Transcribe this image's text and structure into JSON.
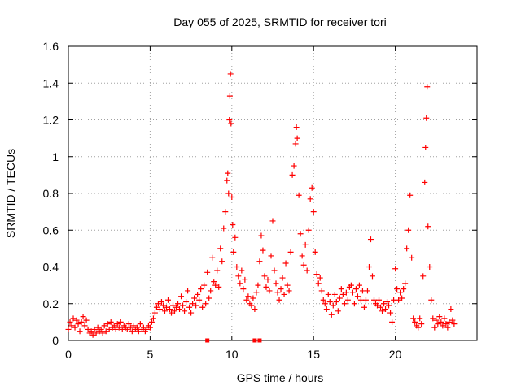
{
  "chart_data": {
    "type": "scatter",
    "title": "Day 055 of 2025, SRMTID for receiver tori",
    "xlabel": "GPS time / hours",
    "ylabel": "SRMTID / TECUs",
    "xlim": [
      0,
      25
    ],
    "ylim": [
      0,
      1.6
    ],
    "x_ticks": [
      0,
      5,
      10,
      15,
      20
    ],
    "x_tick_labels": [
      "0",
      "5",
      "10",
      "15",
      "20"
    ],
    "y_ticks": [
      0,
      0.2,
      0.4,
      0.6,
      0.8,
      1.0,
      1.2,
      1.4,
      1.6
    ],
    "y_tick_labels": [
      "0",
      "0.2",
      "0.4",
      "0.6",
      "0.8",
      "1",
      "1.2",
      "1.4",
      "1.6"
    ],
    "grid": true,
    "marker": "+",
    "colors": {
      "series": "#ff0000",
      "grid": "#a0a0a0",
      "axis": "#000000"
    },
    "series": [
      {
        "name": "SRMTID",
        "points": [
          [
            0.0,
            0.06
          ],
          [
            0.1,
            0.1
          ],
          [
            0.2,
            0.08
          ],
          [
            0.3,
            0.12
          ],
          [
            0.4,
            0.07
          ],
          [
            0.5,
            0.11
          ],
          [
            0.6,
            0.09
          ],
          [
            0.7,
            0.05
          ],
          [
            0.8,
            0.1
          ],
          [
            0.9,
            0.13
          ],
          [
            1.0,
            0.08
          ],
          [
            1.1,
            0.11
          ],
          [
            1.2,
            0.06
          ],
          [
            1.3,
            0.04
          ],
          [
            1.4,
            0.05
          ],
          [
            1.5,
            0.03
          ],
          [
            1.6,
            0.06
          ],
          [
            1.7,
            0.04
          ],
          [
            1.8,
            0.07
          ],
          [
            1.9,
            0.05
          ],
          [
            2.0,
            0.06
          ],
          [
            2.1,
            0.04
          ],
          [
            2.2,
            0.08
          ],
          [
            2.3,
            0.05
          ],
          [
            2.4,
            0.09
          ],
          [
            2.5,
            0.06
          ],
          [
            2.6,
            0.1
          ],
          [
            2.7,
            0.07
          ],
          [
            2.8,
            0.08
          ],
          [
            2.9,
            0.06
          ],
          [
            3.0,
            0.09
          ],
          [
            3.1,
            0.07
          ],
          [
            3.2,
            0.1
          ],
          [
            3.3,
            0.06
          ],
          [
            3.4,
            0.08
          ],
          [
            3.5,
            0.07
          ],
          [
            3.6,
            0.06
          ],
          [
            3.7,
            0.09
          ],
          [
            3.8,
            0.07
          ],
          [
            3.9,
            0.05
          ],
          [
            4.0,
            0.08
          ],
          [
            4.1,
            0.06
          ],
          [
            4.2,
            0.07
          ],
          [
            4.3,
            0.05
          ],
          [
            4.4,
            0.09
          ],
          [
            4.5,
            0.06
          ],
          [
            4.6,
            0.07
          ],
          [
            4.7,
            0.05
          ],
          [
            4.8,
            0.06
          ],
          [
            4.9,
            0.08
          ],
          [
            5.0,
            0.07
          ],
          [
            5.1,
            0.1
          ],
          [
            5.2,
            0.12
          ],
          [
            5.3,
            0.15
          ],
          [
            5.4,
            0.18
          ],
          [
            5.5,
            0.2
          ],
          [
            5.6,
            0.17
          ],
          [
            5.7,
            0.21
          ],
          [
            5.8,
            0.19
          ],
          [
            5.9,
            0.16
          ],
          [
            6.0,
            0.18
          ],
          [
            6.1,
            0.22
          ],
          [
            6.2,
            0.17
          ],
          [
            6.3,
            0.15
          ],
          [
            6.4,
            0.19
          ],
          [
            6.5,
            0.16
          ],
          [
            6.6,
            0.18
          ],
          [
            6.7,
            0.2
          ],
          [
            6.8,
            0.17
          ],
          [
            6.9,
            0.24
          ],
          [
            7.0,
            0.19
          ],
          [
            7.1,
            0.16
          ],
          [
            7.2,
            0.21
          ],
          [
            7.3,
            0.27
          ],
          [
            7.4,
            0.18
          ],
          [
            7.5,
            0.15
          ],
          [
            7.6,
            0.2
          ],
          [
            7.7,
            0.23
          ],
          [
            7.8,
            0.19
          ],
          [
            7.9,
            0.25
          ],
          [
            8.0,
            0.22
          ],
          [
            8.1,
            0.28
          ],
          [
            8.2,
            0.18
          ],
          [
            8.3,
            0.3
          ],
          [
            8.4,
            0.2
          ],
          [
            8.5,
            0.37
          ],
          [
            8.6,
            0.23
          ],
          [
            8.7,
            0.27
          ],
          [
            8.8,
            0.45
          ],
          [
            8.9,
            0.32
          ],
          [
            9.0,
            0.3
          ],
          [
            9.1,
            0.38
          ],
          [
            9.2,
            0.29
          ],
          [
            9.3,
            0.5
          ],
          [
            9.4,
            0.43
          ],
          [
            9.5,
            0.61
          ],
          [
            9.6,
            0.7
          ],
          [
            9.7,
            0.87
          ],
          [
            9.75,
            0.91
          ],
          [
            9.8,
            0.8
          ],
          [
            9.85,
            1.2
          ],
          [
            9.88,
            1.33
          ],
          [
            9.92,
            1.45
          ],
          [
            9.95,
            1.18
          ],
          [
            10.0,
            0.78
          ],
          [
            10.05,
            0.63
          ],
          [
            10.1,
            0.48
          ],
          [
            10.2,
            0.56
          ],
          [
            10.3,
            0.4
          ],
          [
            10.4,
            0.35
          ],
          [
            10.5,
            0.31
          ],
          [
            10.6,
            0.38
          ],
          [
            10.7,
            0.28
          ],
          [
            10.8,
            0.33
          ],
          [
            10.9,
            0.22
          ],
          [
            11.0,
            0.24
          ],
          [
            11.1,
            0.2
          ],
          [
            11.2,
            0.19
          ],
          [
            11.3,
            0.23
          ],
          [
            11.4,
            0.17
          ],
          [
            11.5,
            0.26
          ],
          [
            11.6,
            0.3
          ],
          [
            11.7,
            0.43
          ],
          [
            11.8,
            0.57
          ],
          [
            11.9,
            0.49
          ],
          [
            12.0,
            0.35
          ],
          [
            12.1,
            0.29
          ],
          [
            12.2,
            0.33
          ],
          [
            12.3,
            0.27
          ],
          [
            12.4,
            0.46
          ],
          [
            12.5,
            0.65
          ],
          [
            12.6,
            0.38
          ],
          [
            12.7,
            0.31
          ],
          [
            12.8,
            0.26
          ],
          [
            12.9,
            0.22
          ],
          [
            13.0,
            0.28
          ],
          [
            13.1,
            0.34
          ],
          [
            13.2,
            0.25
          ],
          [
            13.3,
            0.42
          ],
          [
            13.4,
            0.3
          ],
          [
            13.5,
            0.27
          ],
          [
            13.6,
            0.48
          ],
          [
            13.7,
            0.9
          ],
          [
            13.8,
            0.95
          ],
          [
            13.9,
            1.07
          ],
          [
            13.95,
            1.16
          ],
          [
            14.0,
            1.1
          ],
          [
            14.1,
            0.79
          ],
          [
            14.2,
            0.58
          ],
          [
            14.3,
            0.46
          ],
          [
            14.4,
            0.41
          ],
          [
            14.5,
            0.52
          ],
          [
            14.6,
            0.38
          ],
          [
            14.7,
            0.6
          ],
          [
            14.8,
            0.77
          ],
          [
            14.9,
            0.83
          ],
          [
            15.0,
            0.7
          ],
          [
            15.1,
            0.48
          ],
          [
            15.2,
            0.36
          ],
          [
            15.3,
            0.31
          ],
          [
            15.4,
            0.34
          ],
          [
            15.5,
            0.27
          ],
          [
            15.6,
            0.22
          ],
          [
            15.7,
            0.2
          ],
          [
            15.8,
            0.17
          ],
          [
            15.9,
            0.25
          ],
          [
            16.0,
            0.21
          ],
          [
            16.1,
            0.14
          ],
          [
            16.2,
            0.19
          ],
          [
            16.3,
            0.25
          ],
          [
            16.4,
            0.21
          ],
          [
            16.5,
            0.16
          ],
          [
            16.6,
            0.23
          ],
          [
            16.7,
            0.28
          ],
          [
            16.8,
            0.25
          ],
          [
            16.9,
            0.2
          ],
          [
            17.0,
            0.26
          ],
          [
            17.1,
            0.22
          ],
          [
            17.2,
            0.29
          ],
          [
            17.3,
            0.3
          ],
          [
            17.4,
            0.26
          ],
          [
            17.5,
            0.2
          ],
          [
            17.6,
            0.28
          ],
          [
            17.7,
            0.24
          ],
          [
            17.8,
            0.3
          ],
          [
            17.9,
            0.22
          ],
          [
            18.0,
            0.27
          ],
          [
            18.1,
            0.18
          ],
          [
            18.2,
            0.22
          ],
          [
            18.3,
            0.27
          ],
          [
            18.4,
            0.4
          ],
          [
            18.5,
            0.55
          ],
          [
            18.6,
            0.35
          ],
          [
            18.7,
            0.22
          ],
          [
            18.8,
            0.2
          ],
          [
            18.9,
            0.19
          ],
          [
            19.0,
            0.22
          ],
          [
            19.1,
            0.18
          ],
          [
            19.2,
            0.16
          ],
          [
            19.3,
            0.2
          ],
          [
            19.4,
            0.17
          ],
          [
            19.5,
            0.21
          ],
          [
            19.6,
            0.19
          ],
          [
            19.7,
            0.15
          ],
          [
            19.8,
            0.1
          ],
          [
            19.9,
            0.22
          ],
          [
            20.0,
            0.39
          ],
          [
            20.1,
            0.28
          ],
          [
            20.2,
            0.22
          ],
          [
            20.3,
            0.26
          ],
          [
            20.4,
            0.23
          ],
          [
            20.5,
            0.28
          ],
          [
            20.6,
            0.31
          ],
          [
            20.7,
            0.5
          ],
          [
            20.8,
            0.6
          ],
          [
            20.9,
            0.79
          ],
          [
            21.0,
            0.45
          ],
          [
            21.1,
            0.12
          ],
          [
            21.2,
            0.1
          ],
          [
            21.3,
            0.08
          ],
          [
            21.4,
            0.07
          ],
          [
            21.5,
            0.12
          ],
          [
            21.6,
            0.09
          ],
          [
            21.7,
            0.35
          ],
          [
            21.8,
            0.86
          ],
          [
            21.85,
            1.05
          ],
          [
            21.9,
            1.21
          ],
          [
            21.95,
            1.38
          ],
          [
            22.0,
            0.62
          ],
          [
            22.1,
            0.4
          ],
          [
            22.2,
            0.22
          ],
          [
            22.3,
            0.12
          ],
          [
            22.4,
            0.07
          ],
          [
            22.5,
            0.11
          ],
          [
            22.6,
            0.09
          ],
          [
            22.7,
            0.13
          ],
          [
            22.8,
            0.1
          ],
          [
            22.9,
            0.08
          ],
          [
            23.0,
            0.12
          ],
          [
            23.1,
            0.09
          ],
          [
            23.2,
            0.07
          ],
          [
            23.3,
            0.1
          ],
          [
            23.4,
            0.17
          ],
          [
            23.5,
            0.11
          ],
          [
            23.6,
            0.09
          ]
        ]
      }
    ],
    "baseline_markers": [
      8.5,
      11.4,
      11.7
    ]
  }
}
